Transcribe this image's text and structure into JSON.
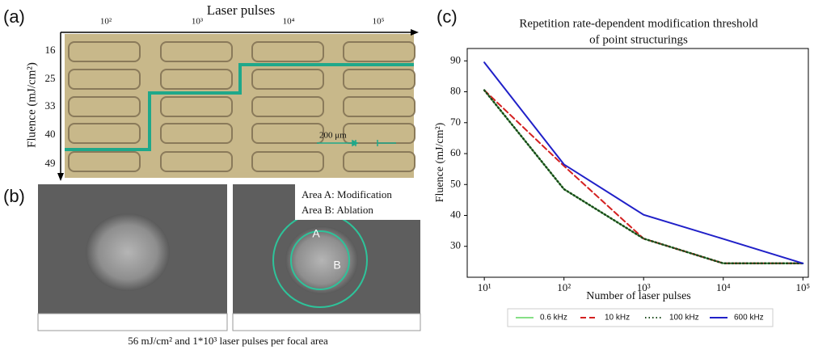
{
  "panels": {
    "a": {
      "label": "(a)",
      "x_label": "Laser pulses",
      "y_label": "Fluence (mJ/cm²)",
      "x_ticks": [
        "10²",
        "10³",
        "10⁴",
        "10⁵"
      ],
      "y_ticks": [
        "16",
        "25",
        "33",
        "40",
        "49"
      ],
      "scale": "200 μm"
    },
    "b": {
      "label": "(b)",
      "legend": [
        "Area A: Modification",
        "Area B: Ablation"
      ],
      "marker_a": "A",
      "marker_b": "B",
      "caption": "56 mJ/cm² and 1*10³ laser pulses per focal area"
    },
    "c": {
      "label": "(c)"
    }
  },
  "chart_data": {
    "type": "line",
    "title": [
      "Repetition rate-dependent modification threshold",
      "of point structurings"
    ],
    "x_label": "Number of laser pulses",
    "y_label": "Fluence (mJ/cm²)",
    "x": [
      10,
      100,
      1000,
      10000,
      100000
    ],
    "series": [
      {
        "name": "0.6 kHz",
        "color": "#86e086",
        "dash": "solid",
        "values": [
          80.5,
          48.5,
          32.5,
          24.5,
          24.5
        ]
      },
      {
        "name": "10 kHz",
        "color": "#d42020",
        "dash": "dashed",
        "values": [
          80.5,
          56,
          32.5,
          24.5,
          24.5
        ]
      },
      {
        "name": "100 kHz",
        "color": "#1a4a1a",
        "dash": "dotted",
        "values": [
          80.5,
          48.5,
          32.5,
          24.5,
          24.5
        ]
      },
      {
        "name": "600 kHz",
        "color": "#2020c8",
        "dash": "solid",
        "values": [
          89.5,
          56.5,
          40.2,
          32.4,
          24.5
        ]
      }
    ],
    "log_x": true,
    "xlim": [
      6.1,
      117000
    ],
    "xticks": [
      {
        "value": 10,
        "label": "10¹"
      },
      {
        "value": 100,
        "label": "10²"
      },
      {
        "value": 1000,
        "label": "10³"
      },
      {
        "value": 10000,
        "label": "10⁴"
      },
      {
        "value": 100000,
        "label": "10⁵"
      }
    ],
    "ylim": [
      20,
      94
    ],
    "yticks": [
      30,
      40,
      50,
      60,
      70,
      80,
      90
    ],
    "legend": "bottom"
  }
}
